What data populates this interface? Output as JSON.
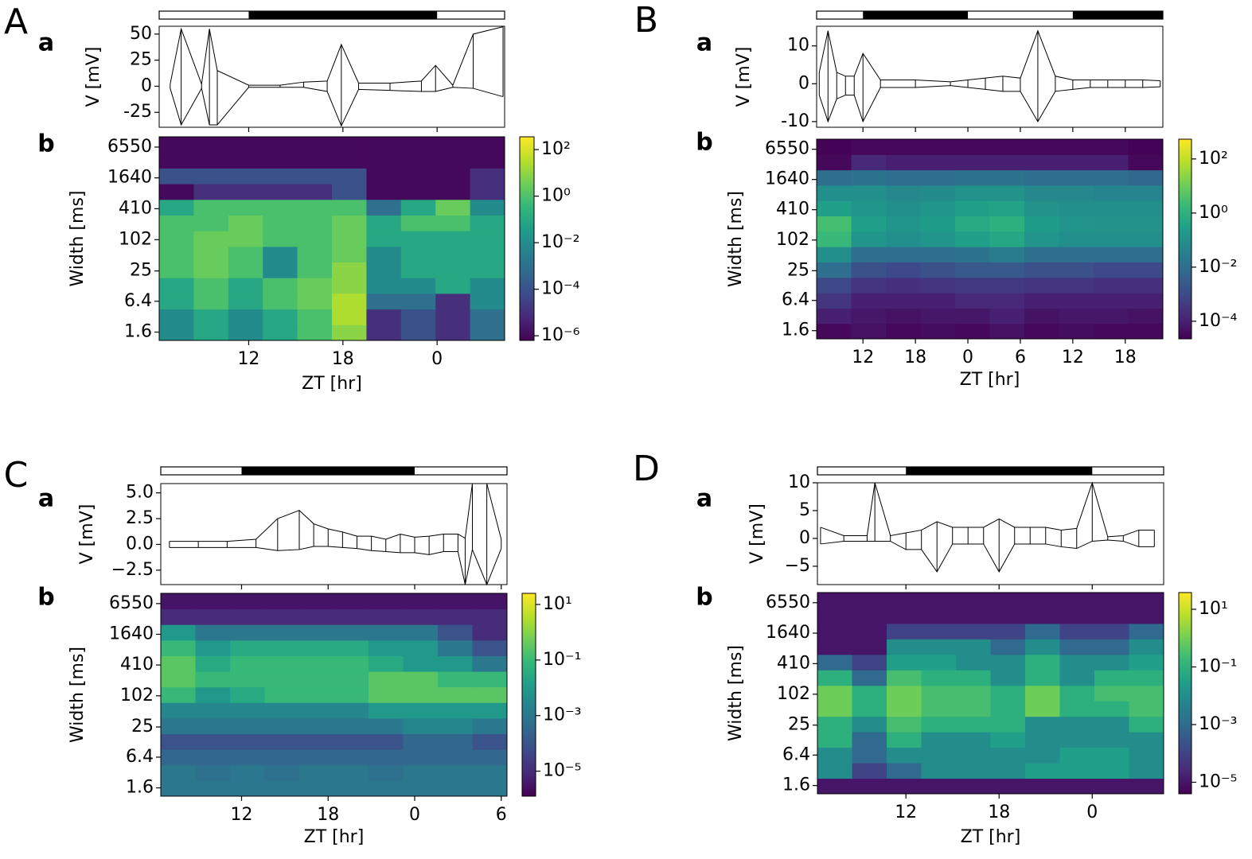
{
  "chart_data": [
    {
      "type": "line",
      "panel": "A",
      "subpanel": "a",
      "ylabel": "V [mV]",
      "color": "#000000",
      "xlim": [
        6.3,
        28.3
      ],
      "xticks": [
        12,
        18,
        24
      ],
      "ylim": [
        -39.3,
        57.5
      ],
      "yticks": [
        -25,
        0,
        25,
        50
      ],
      "dark_periods": [
        [
          12,
          24
        ]
      ],
      "x": [
        7,
        7.7,
        9,
        9.5,
        10,
        12,
        14,
        15.5,
        17,
        17.9,
        19,
        21,
        23,
        23.9,
        25,
        26.3,
        28.2
      ],
      "series": [
        {
          "values": [
            2,
            55,
            2,
            55,
            15,
            1,
            1,
            4,
            5,
            40,
            3,
            3,
            5,
            20,
            1,
            50,
            57
          ]
        },
        {
          "values": [
            -2,
            -37,
            -2,
            -37,
            -37,
            -1,
            -1,
            -1,
            -5,
            -38,
            -3,
            -4,
            -5,
            -5,
            -1,
            -2,
            -10
          ]
        }
      ]
    },
    {
      "type": "heatmap",
      "subpanel": "b",
      "ylabel": "Width [ms]",
      "xlabel": "ZT [hr]",
      "xlim": [
        6.3,
        28.3
      ],
      "xticks": [
        12,
        18,
        {
          "value": 24,
          "label": "0"
        }
      ],
      "ylim": [
        1.1,
        10400
      ],
      "log_y": true,
      "yticks": [
        1.6,
        6.4,
        25,
        102,
        410,
        1640,
        6550
      ],
      "x_edges": [
        6.3,
        8.5,
        10.7,
        12.9,
        15.1,
        17.3,
        19.5,
        21.7,
        23.9,
        26.1,
        28.3
      ],
      "values": [
        [
          -2,
          -1,
          -2,
          -1,
          0,
          1,
          -5,
          -4,
          -5,
          -3
        ],
        [
          -2,
          -1,
          -2,
          -1,
          0,
          1.5,
          -5,
          -4,
          -5,
          -3
        ],
        [
          -1,
          0,
          -1,
          0,
          0.5,
          1.5,
          -3,
          -3,
          -5,
          -2
        ],
        [
          -1,
          0,
          -1,
          0,
          0.5,
          1,
          -2,
          -2,
          -1,
          -2
        ],
        [
          0,
          0.5,
          0,
          -2,
          0,
          1,
          -2,
          -1,
          -1,
          -1
        ],
        [
          0,
          0.5,
          0,
          -2,
          0,
          0.5,
          -2,
          -1,
          -1,
          -1
        ],
        [
          0,
          0.5,
          0.5,
          0,
          0,
          0.5,
          -1,
          -1,
          -1,
          -1
        ],
        [
          0,
          0,
          0.5,
          0,
          0,
          0.5,
          -1,
          0,
          0,
          -1
        ],
        [
          -1,
          0,
          0,
          0,
          0,
          0,
          -3,
          -1,
          0.5,
          -2
        ],
        [
          -6,
          -5,
          -5,
          -5,
          -5,
          -4,
          -6,
          -6,
          -6,
          -5
        ],
        [
          -4,
          -4,
          -4,
          -4,
          -4,
          -4,
          -6,
          -6,
          -6,
          -5
        ],
        [
          -6,
          -6,
          -6,
          -6,
          -6,
          -6,
          -6,
          -6,
          -6,
          -6
        ],
        [
          -6,
          -6,
          -6,
          -6,
          -6,
          -6,
          -6,
          -6,
          -6,
          -6
        ]
      ],
      "clim": [
        -6.2,
        2.55
      ],
      "cticks": [
        {
          "value": 2,
          "label": "10²"
        },
        {
          "value": 0,
          "label": "10⁰"
        },
        {
          "value": -2,
          "label": "10⁻²"
        },
        {
          "value": -4,
          "label": "10⁻⁴"
        },
        {
          "value": -6,
          "label": "10⁻⁶"
        }
      ]
    },
    {
      "type": "line",
      "panel": "B",
      "subpanel": "a",
      "ylabel": "V [mV]",
      "color": "#000000",
      "xlim": [
        6.7,
        46.3
      ],
      "xticks": [
        12,
        18,
        24,
        30,
        36,
        42
      ],
      "ylim": [
        -11.5,
        15.2
      ],
      "yticks": [
        -10,
        0,
        10
      ],
      "dark_periods": [
        [
          12,
          24
        ],
        [
          36,
          46.3
        ]
      ],
      "x": [
        7,
        8,
        9,
        10,
        11,
        12,
        14,
        18,
        22,
        24,
        26,
        28,
        30,
        32,
        34,
        36,
        38,
        40,
        42,
        44,
        46
      ],
      "series": [
        {
          "values": [
            3,
            14,
            3,
            2,
            2,
            8,
            1,
            1,
            0.5,
            1,
            1.5,
            2,
            1.5,
            14,
            2,
            1,
            1,
            1,
            1,
            1,
            0.8
          ]
        },
        {
          "values": [
            -3,
            -10,
            -4,
            -3,
            -3,
            -10,
            -1,
            -1,
            -0.5,
            -1,
            -1.5,
            -2,
            -2,
            -10,
            -2,
            -1.5,
            -1,
            -1,
            -1,
            -1,
            -0.8
          ]
        }
      ]
    },
    {
      "type": "heatmap",
      "subpanel": "b",
      "ylabel": "Width [ms]",
      "xlabel": "ZT [hr]",
      "xlim": [
        6.7,
        46.3
      ],
      "xticks": [
        12,
        18,
        {
          "value": 24,
          "label": "0"
        },
        {
          "value": 30,
          "label": "6"
        },
        {
          "value": 36,
          "label": "12"
        },
        {
          "value": 42,
          "label": "18"
        }
      ],
      "ylim": [
        1.1,
        10400
      ],
      "log_y": true,
      "yticks": [
        1.6,
        6.4,
        25,
        102,
        410,
        1640,
        6550
      ],
      "x_edges": [
        6.7,
        10.66,
        14.62,
        18.58,
        22.54,
        26.5,
        30.46,
        34.42,
        38.38,
        42.34,
        46.3
      ],
      "values": [
        [
          -4.5,
          -4.3,
          -4.5,
          -4.4,
          -4.5,
          -4.3,
          -4.5,
          -4.4,
          -4.5,
          -4.5
        ],
        [
          -4,
          -4.2,
          -4.3,
          -4.2,
          -4.2,
          -4,
          -4.3,
          -4.2,
          -4.2,
          -4.3
        ],
        [
          -3.5,
          -4,
          -4,
          -4,
          -3.8,
          -3.8,
          -4,
          -4,
          -4,
          -4
        ],
        [
          -3,
          -3.5,
          -3.6,
          -3.5,
          -3.4,
          -3.4,
          -3.5,
          -3.5,
          -3.6,
          -3.6
        ],
        [
          -2,
          -2.8,
          -3,
          -2.8,
          -2.6,
          -2.6,
          -2.8,
          -2.8,
          -3,
          -3
        ],
        [
          -1,
          -2,
          -2,
          -2,
          -1.8,
          -1.6,
          -2,
          -2,
          -2,
          -2
        ],
        [
          0.3,
          -0.8,
          -1,
          -0.8,
          -0.5,
          -0.3,
          -0.8,
          -1,
          -1,
          -1
        ],
        [
          0.5,
          -0.5,
          -0.8,
          -0.6,
          -0.2,
          0,
          -0.6,
          -0.8,
          -0.9,
          -0.9
        ],
        [
          -0.5,
          -0.8,
          -1,
          -0.8,
          -0.5,
          -0.4,
          -0.9,
          -1,
          -1,
          -1
        ],
        [
          -1,
          -1,
          -1.2,
          -1.1,
          -0.9,
          -0.9,
          -1.2,
          -1.2,
          -1.3,
          -1.3
        ],
        [
          -2,
          -1.8,
          -2,
          -2,
          -1.8,
          -1.8,
          -2,
          -2,
          -2,
          -2.2
        ],
        [
          -4.5,
          -3.8,
          -4,
          -4,
          -4,
          -4,
          -4,
          -4,
          -4,
          -4.5
        ],
        [
          -4.6,
          -4.5,
          -4.5,
          -4.5,
          -4.5,
          -4.5,
          -4.5,
          -4.5,
          -4.5,
          -4.6
        ]
      ],
      "clim": [
        -4.65,
        2.73
      ],
      "cticks": [
        {
          "value": 2,
          "label": "10²"
        },
        {
          "value": 0,
          "label": "10⁰"
        },
        {
          "value": -2,
          "label": "10⁻²"
        },
        {
          "value": -4,
          "label": "10⁻⁴"
        }
      ]
    },
    {
      "type": "line",
      "panel": "C",
      "subpanel": "a",
      "ylabel": "V [mV]",
      "color": "#000000",
      "xlim": [
        6.4,
        30.4
      ],
      "xticks": [
        12,
        18,
        24,
        30
      ],
      "ylim": [
        -3.9,
        5.9
      ],
      "yticks": [
        {
          "value": -2.5,
          "label": "−2.5"
        },
        {
          "value": 0,
          "label": "0.0"
        },
        2.5,
        {
          "value": 5,
          "label": "5.0"
        }
      ],
      "dark_periods": [
        [
          12,
          24
        ]
      ],
      "x": [
        7,
        9,
        11,
        13,
        14.5,
        16,
        17,
        18,
        19,
        20,
        21,
        22,
        23,
        24,
        25,
        26,
        27,
        27.5,
        28,
        29,
        30
      ],
      "series": [
        {
          "values": [
            0.3,
            0.3,
            0.3,
            0.5,
            2.5,
            3.3,
            2,
            1.5,
            1.2,
            0.8,
            0.8,
            0.5,
            1,
            0.7,
            0.8,
            1,
            1,
            0.6,
            5.9,
            5.9,
            0.5
          ]
        },
        {
          "values": [
            -0.3,
            -0.3,
            -0.3,
            -0.3,
            -0.6,
            -0.5,
            -0.2,
            -0.2,
            -0.3,
            -0.4,
            -0.6,
            -0.7,
            -0.8,
            -0.8,
            -1,
            -0.7,
            -0.7,
            -3.9,
            -0.5,
            -3.9,
            -0.4
          ]
        }
      ]
    },
    {
      "type": "heatmap",
      "subpanel": "b",
      "ylabel": "Width [ms]",
      "xlabel": "ZT [hr]",
      "xlim": [
        6.4,
        30.4
      ],
      "xticks": [
        12,
        18,
        {
          "value": 24,
          "label": "0"
        },
        {
          "value": 30,
          "label": "6"
        }
      ],
      "ylim": [
        1.1,
        10400
      ],
      "log_y": true,
      "yticks": [
        1.6,
        6.4,
        25,
        102,
        410,
        1640,
        6550
      ],
      "x_edges": [
        6.4,
        8.8,
        11.2,
        13.6,
        16,
        18.4,
        20.8,
        23.2,
        25.6,
        28,
        30.4
      ],
      "values": [
        [
          -3,
          -3,
          -3,
          -3,
          -3,
          -3,
          -3,
          -3,
          -3,
          -3
        ],
        [
          -3,
          -3.2,
          -3,
          -3.2,
          -3,
          -3,
          -3.2,
          -3,
          -3,
          -3
        ],
        [
          -3.5,
          -3.5,
          -3.5,
          -3.5,
          -3.5,
          -3.5,
          -3.5,
          -3.5,
          -3.5,
          -3.5
        ],
        [
          -4,
          -4,
          -4,
          -4,
          -4,
          -4,
          -4,
          -3.5,
          -3.5,
          -4
        ],
        [
          -3,
          -3,
          -3,
          -3,
          -3,
          -3,
          -3,
          -2.5,
          -2.5,
          -3
        ],
        [
          -2.5,
          -2.5,
          -2.5,
          -2.5,
          -2.5,
          -2.5,
          -2,
          -2,
          -2,
          -2
        ],
        [
          -1,
          -2,
          -1.5,
          -1,
          -1,
          -1,
          -0.5,
          -0.5,
          -0.5,
          -0.5
        ],
        [
          -0.5,
          -1,
          -1,
          -1,
          -1,
          -1,
          -0.5,
          -0.5,
          -1,
          -1
        ],
        [
          -0.5,
          -1.5,
          -1,
          -1,
          -1,
          -1,
          -1.5,
          -2,
          -2,
          -3
        ],
        [
          -1,
          -2,
          -1.5,
          -1.5,
          -1.5,
          -1.5,
          -2,
          -2,
          -3,
          -4
        ],
        [
          -2,
          -3,
          -3,
          -3,
          -3,
          -3,
          -3,
          -3,
          -4,
          -5
        ],
        [
          -5,
          -5,
          -5,
          -5,
          -5,
          -5,
          -5,
          -5,
          -5,
          -5
        ],
        [
          -5.5,
          -5.5,
          -5.5,
          -5.5,
          -5.5,
          -5.5,
          -5.5,
          -5.5,
          -5.5,
          -5.5
        ]
      ],
      "clim": [
        -5.9,
        1.4
      ],
      "cticks": [
        {
          "value": 1,
          "label": "10¹"
        },
        {
          "value": -1,
          "label": "10⁻¹"
        },
        {
          "value": -3,
          "label": "10⁻³"
        },
        {
          "value": -5,
          "label": "10⁻⁵"
        }
      ]
    },
    {
      "type": "line",
      "panel": "D",
      "subpanel": "a",
      "ylabel": "V [mV]",
      "color": "#000000",
      "xlim": [
        6.3,
        28.6
      ],
      "xticks": [
        12,
        18,
        24
      ],
      "ylim": [
        -8.3,
        10
      ],
      "yticks": [
        {
          "value": -5,
          "label": "−5"
        },
        0,
        5,
        10
      ],
      "dark_periods": [
        [
          12,
          24
        ]
      ],
      "x": [
        6.5,
        8,
        9.5,
        10,
        11,
        12,
        13,
        14,
        15,
        16,
        17,
        18,
        19,
        20,
        21,
        22,
        23,
        24,
        25,
        26,
        27,
        28
      ],
      "series": [
        {
          "values": [
            2,
            0.5,
            0.5,
            10,
            0.5,
            1,
            1.5,
            3,
            2,
            2,
            2,
            3.5,
            2,
            2,
            2,
            1.5,
            1.8,
            10,
            0.3,
            0.5,
            1.5,
            1.5
          ]
        },
        {
          "values": [
            -1,
            -0.5,
            -0.5,
            -0.5,
            -0.5,
            -2,
            -2,
            -6,
            -1,
            -1,
            -1,
            -6,
            -1,
            -1,
            -1,
            -1.5,
            -1.8,
            -0.5,
            -0.3,
            -0.5,
            -1.5,
            -1.5
          ]
        }
      ]
    },
    {
      "type": "heatmap",
      "subpanel": "b",
      "ylabel": "Width [ms]",
      "xlabel": "ZT [hr]",
      "xlim": [
        6.3,
        28.6
      ],
      "xticks": [
        12,
        18,
        {
          "value": 24,
          "label": "0"
        }
      ],
      "ylim": [
        1.1,
        10400
      ],
      "log_y": true,
      "yticks": [
        1.6,
        6.4,
        25,
        102,
        410,
        1640,
        6550
      ],
      "x_edges": [
        6.3,
        8.53,
        10.76,
        12.99,
        15.22,
        17.45,
        19.68,
        21.91,
        24.14,
        26.37,
        28.6
      ],
      "values": [
        [
          -5,
          -5,
          -5,
          -5,
          -5,
          -5,
          -5,
          -5,
          -5,
          -5
        ],
        [
          -2,
          -4,
          -3,
          -2,
          -2,
          -2,
          -1.5,
          -1.5,
          -1.5,
          -2
        ],
        [
          -2,
          -3,
          -2,
          -2,
          -2,
          -2,
          -2,
          -1.5,
          -1.5,
          -2
        ],
        [
          -1,
          -3,
          -1,
          -2,
          -2,
          -1.5,
          -2,
          -2,
          -2,
          -2
        ],
        [
          -1,
          -2,
          -0.5,
          -1,
          -1,
          -1,
          -2,
          -2,
          -2,
          -1
        ],
        [
          0,
          -1,
          0,
          -0.5,
          -0.5,
          -1,
          0,
          -1,
          -1,
          -0.5
        ],
        [
          0,
          -1,
          0,
          -0.5,
          -0.5,
          -1,
          0,
          -1,
          -0.5,
          -0.5
        ],
        [
          -1,
          -3,
          -0.5,
          -1,
          -1,
          -2,
          -1,
          -2,
          -1,
          -1
        ],
        [
          -3,
          -4,
          -1.5,
          -1.5,
          -2,
          -2,
          -1,
          -2,
          -2,
          -1.5
        ],
        [
          -5,
          -5,
          -2,
          -2,
          -2,
          -3,
          -2,
          -3,
          -3,
          -2
        ],
        [
          -5,
          -5,
          -4,
          -4,
          -4,
          -4,
          -3,
          -4,
          -4,
          -3
        ],
        [
          -5,
          -5,
          -5,
          -5,
          -5,
          -5,
          -5,
          -5,
          -5,
          -5
        ],
        [
          -5,
          -5,
          -5,
          -5,
          -5,
          -5,
          -5,
          -5,
          -5,
          -5
        ]
      ],
      "clim": [
        -5.4,
        1.58
      ],
      "cticks": [
        {
          "value": 1,
          "label": "10¹"
        },
        {
          "value": -1,
          "label": "10⁻¹"
        },
        {
          "value": -3,
          "label": "10⁻³"
        },
        {
          "value": -5,
          "label": "10⁻⁵"
        }
      ]
    }
  ]
}
